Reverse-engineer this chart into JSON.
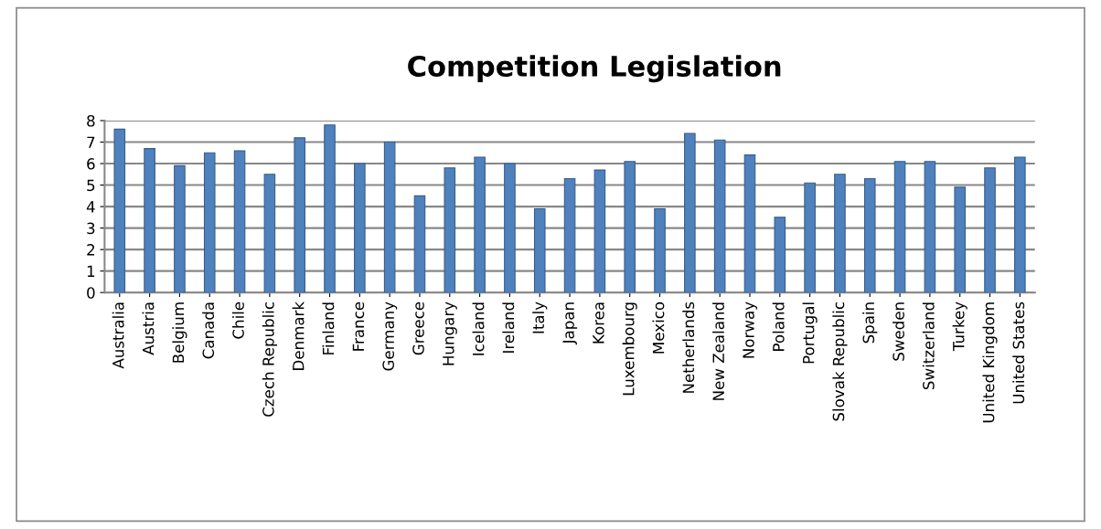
{
  "chart_data": {
    "type": "bar",
    "title": "Competition Legislation",
    "categories": [
      "Australia",
      "Austria",
      "Belgium",
      "Canada",
      "Chile",
      "Czech Republic",
      "Denmark",
      "Finland",
      "France",
      "Germany",
      "Greece",
      "Hungary",
      "Iceland",
      "Ireland",
      "Italy",
      "Japan",
      "Korea",
      "Luxembourg",
      "Mexico",
      "Netherlands",
      "New Zealand",
      "Norway",
      "Poland",
      "Portugal",
      "Slovak Republic",
      "Spain",
      "Sweden",
      "Switzerland",
      "Turkey",
      "United Kingdom",
      "United States"
    ],
    "values": [
      7.6,
      6.7,
      5.9,
      6.5,
      6.6,
      5.5,
      7.2,
      7.8,
      6.0,
      7.0,
      4.5,
      5.8,
      6.3,
      6.0,
      3.9,
      5.3,
      5.7,
      6.1,
      3.9,
      7.4,
      7.1,
      6.4,
      3.5,
      5.1,
      5.5,
      5.3,
      6.1,
      6.1,
      4.9,
      5.8,
      6.3
    ],
    "color": "#4f81bd",
    "ylim": [
      0,
      8
    ],
    "yticks": [
      0,
      1,
      2,
      3,
      4,
      5,
      6,
      7,
      8
    ],
    "grid": "y"
  }
}
